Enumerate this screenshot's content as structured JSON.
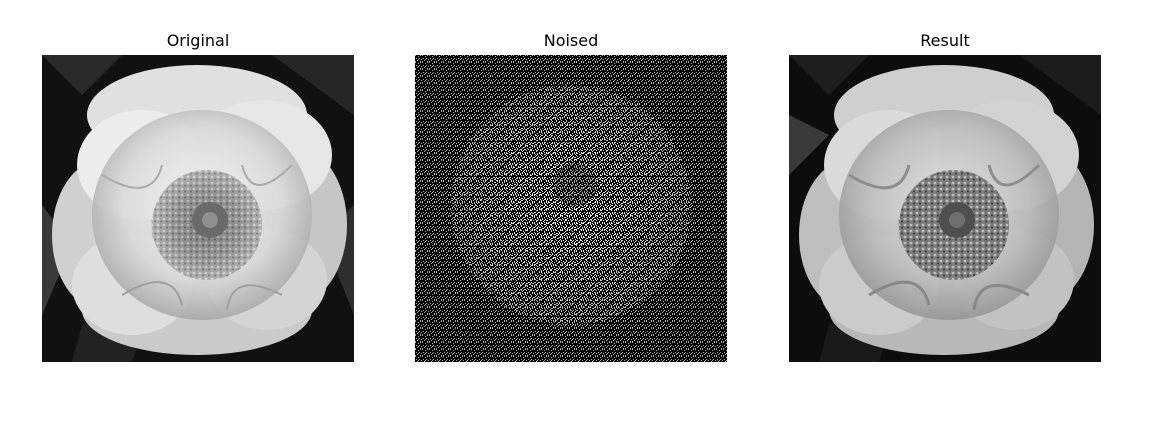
{
  "figure": {
    "panels": [
      {
        "title": "Original",
        "depicts": "grayscale peony flower photograph"
      },
      {
        "title": "Noised",
        "depicts": "salt-and-pepper noise over flower"
      },
      {
        "title": "Result",
        "depicts": "denoised grayscale peony flower"
      }
    ]
  }
}
